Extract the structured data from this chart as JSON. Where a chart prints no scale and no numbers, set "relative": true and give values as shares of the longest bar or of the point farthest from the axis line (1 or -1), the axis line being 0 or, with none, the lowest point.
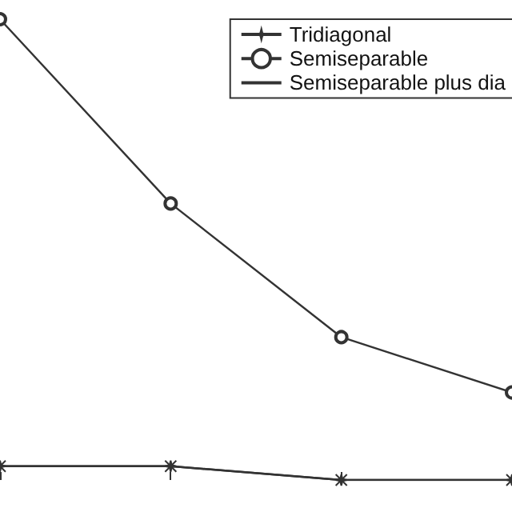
{
  "chart_data": {
    "type": "line",
    "relative": true,
    "categories": [
      null,
      null,
      null,
      null
    ],
    "legend": "top right",
    "grid": false,
    "series": [
      {
        "name": "Tridiagonal",
        "color": "#333333",
        "marker": "star",
        "values": [
          0.03,
          0.03,
          0,
          0
        ]
      },
      {
        "name": "Semiseparable",
        "color": "#333333",
        "marker": "circle",
        "values": [
          1,
          0.6,
          0.31,
          0.19
        ]
      },
      {
        "name": "Semiseparable plus dia",
        "color": "#333333",
        "marker": "cross",
        "values": [
          0.03,
          0.03,
          0,
          0
        ]
      }
    ]
  }
}
